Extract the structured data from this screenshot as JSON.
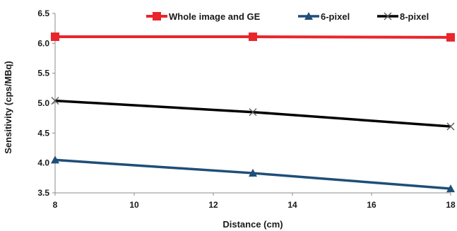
{
  "chart_data": {
    "type": "line",
    "title": "",
    "xlabel": "Distance (cm)",
    "ylabel": "Sensitivity (cps/MBq)",
    "xlim": [
      8,
      18
    ],
    "ylim": [
      3.5,
      6.5
    ],
    "xticks": [
      "8",
      "10",
      "12",
      "14",
      "16",
      "18"
    ],
    "yticks": [
      "3.5",
      "4.0",
      "4.5",
      "5.0",
      "5.5",
      "6.0",
      "6.5"
    ],
    "grid": false,
    "legend_position": "top",
    "series": [
      {
        "name": "Whole image and GE",
        "color": "#e8262b",
        "marker": "square",
        "x": [
          8,
          13,
          18
        ],
        "y": [
          6.11,
          6.11,
          6.1
        ]
      },
      {
        "name": "6-pixel",
        "color": "#1f4e79",
        "marker": "triangle",
        "x": [
          8,
          13,
          18
        ],
        "y": [
          4.05,
          3.83,
          3.57
        ]
      },
      {
        "name": "8-pixel",
        "color": "#000000",
        "marker": "x",
        "x": [
          8,
          13,
          18
        ],
        "y": [
          5.04,
          4.85,
          4.61
        ]
      }
    ]
  }
}
